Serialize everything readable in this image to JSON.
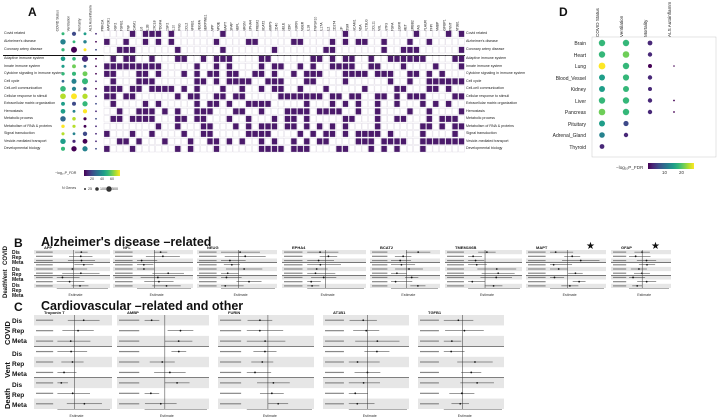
{
  "panelA": {
    "letter": "A",
    "rows": [
      "Covid related",
      "Alzheimer's disease",
      "Coronary artery disease",
      "Adaptive immune system",
      "Innate immune system",
      "Cytokine signaling in immune system",
      "Cell cycle",
      "Cell-cell communication",
      "Cellular response to stimuli",
      "Extracellular matrix organization",
      "Hemostasis",
      "Metabolic process",
      "Metabolism of RNA & proteins",
      "Signal transduction",
      "Vesicle-mediated transport",
      "Developmental biology"
    ],
    "dot_cols": [
      "COVID Status",
      "Ventilation",
      "Mortality",
      "ALS Autoinflamm"
    ],
    "genes": [
      "PRKCA",
      "MAP2K1",
      "FGF2",
      "TGFB1",
      "TNF",
      "ICAM1",
      "IL6",
      "IL1B",
      "CXCL8",
      "PDGFA",
      "CSF2",
      "IL10",
      "IFNG",
      "CCL2",
      "NFKB1",
      "VEGFA",
      "SERPINE1",
      "APP",
      "APOE",
      "MAPT",
      "GFAP",
      "NEFL",
      "NRGN",
      "EPHA4",
      "TREM2",
      "BCAT2",
      "MMP9",
      "CD40",
      "SELE",
      "KDR",
      "FURIN",
      "AGER",
      "IL18",
      "TNFSF10",
      "IL17A",
      "IL2",
      "CD274",
      "LIF",
      "OSM",
      "NCAM1",
      "ADA",
      "FLT3LG",
      "CCL11",
      "AXL",
      "NTF3",
      "TGFA",
      "EGFR",
      "MET",
      "ERBB2",
      "FAS",
      "PLAUR",
      "TFPI",
      "AMBP",
      "IGFBP1",
      "TNNT",
      "AT3B1"
    ],
    "colorbar_label": "−log₁₀P_FDR",
    "colorbar_ticks": [
      "20",
      "40",
      "60"
    ],
    "size_label": "N Genes",
    "size_ticks": [
      "25",
      "100",
      "500"
    ]
  },
  "panelB": {
    "letter": "B",
    "title": "Alzheimer's disease –related",
    "plots": [
      "APP",
      "NFL",
      "NEUG",
      "EPHA4",
      "BCAT2",
      "TMEM106B",
      "MAPT",
      "GFAP"
    ],
    "star_plots": [
      "MAPT",
      "GFAP"
    ]
  },
  "panelC": {
    "letter": "C",
    "title": "Cardiovascular –related  and other",
    "plots": [
      "Troponin T",
      "AMBP",
      "FURIN",
      "AT1B1",
      "TGFB1"
    ]
  },
  "groups": {
    "covid": "COVID",
    "vent": "Vent",
    "death": "Death",
    "rows": [
      "Dis",
      "Rep",
      "Meta"
    ]
  },
  "axis_label": "Estimate",
  "panelD": {
    "letter": "D",
    "cols": [
      "COVID Status",
      "Ventilation",
      "Mortality",
      "ALS Autoinflamm"
    ],
    "rows": [
      "Brain",
      "Heart",
      "Lung",
      "Blood_Vessel",
      "Kidney",
      "Liver",
      "Pancreas",
      "Pituitary",
      "Adrenal_Gland",
      "Thyroid"
    ],
    "colorbar_label": "−log₁₀P_FDR",
    "colorbar_ticks": [
      "10",
      "20"
    ]
  },
  "colors": {
    "viridis_dark": "#440154",
    "viridis_mid": "#21918c",
    "viridis_yellow": "#fde725",
    "matrix_purple": "#4b1a6b"
  }
}
